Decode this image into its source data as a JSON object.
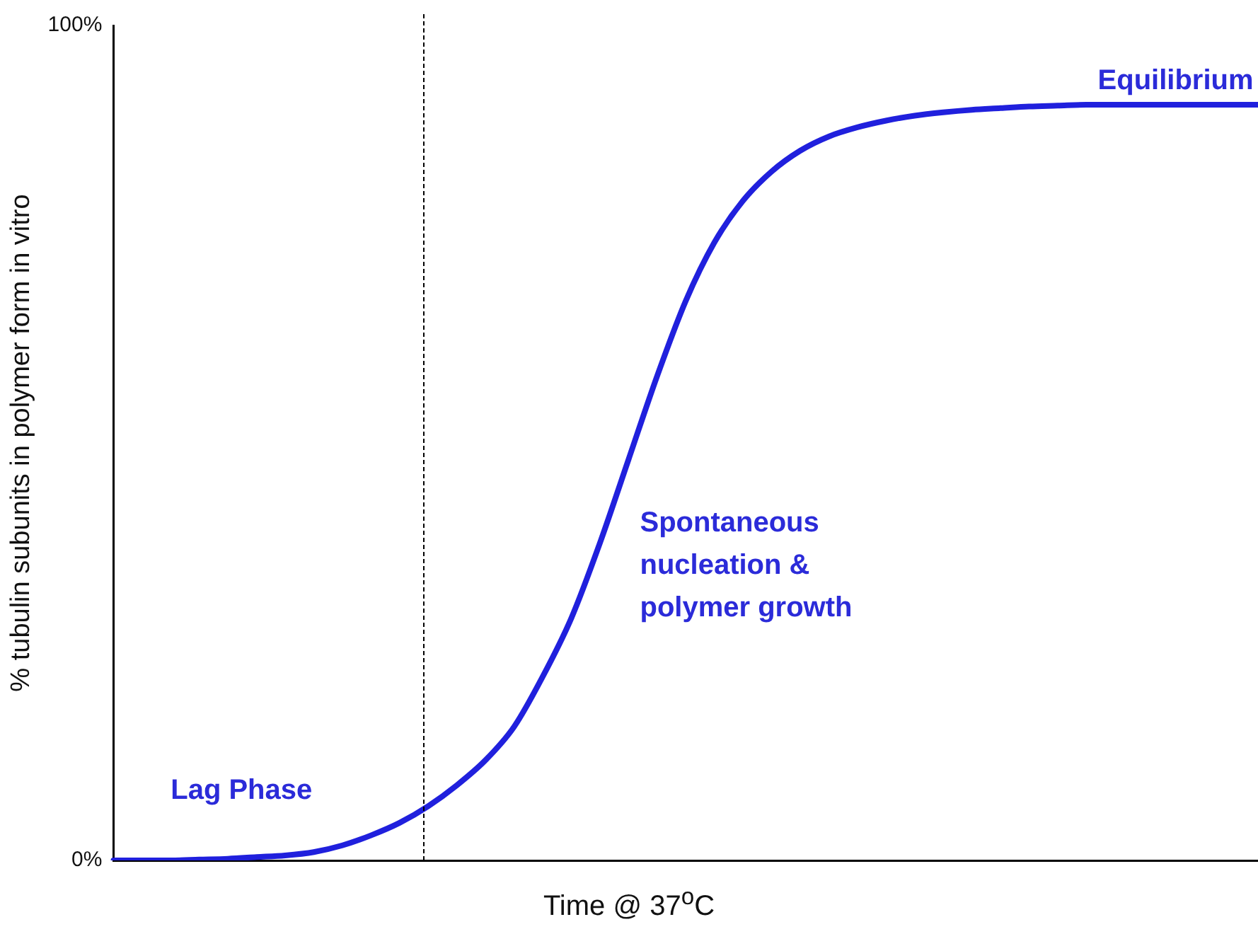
{
  "chart_data": {
    "type": "line",
    "ylabel": "% tubulin subunits in polymer form in vitro",
    "xlabel": "Time @ 37$^{o}$C",
    "categories": [
      null,
      null,
      null,
      null,
      null,
      null,
      null,
      null,
      null,
      null,
      null,
      null,
      null,
      null,
      null,
      null,
      null,
      null,
      null,
      null,
      null,
      null,
      null,
      null,
      null,
      null,
      null,
      null,
      null,
      null,
      null,
      null,
      null,
      null,
      null,
      null,
      null,
      null,
      null,
      null,
      null
    ],
    "series": [
      {
        "color": "#2020dd",
        "values": [
          0,
          0,
          0,
          0.1,
          0.2,
          0.4,
          0.6,
          1,
          1.8,
          3,
          4.5,
          6.5,
          9,
          12,
          16,
          22,
          29,
          38,
          48,
          58,
          67,
          74,
          79,
          82.5,
          85,
          86.7,
          87.8,
          88.6,
          89.2,
          89.6,
          89.9,
          90.1,
          90.3,
          90.4,
          90.5,
          90.5,
          90.5,
          90.5,
          90.5,
          90.5,
          90.5
        ]
      }
    ],
    "ylim": [
      0,
      100
    ],
    "yticks": [
      {
        "value": 0,
        "label": "0%"
      },
      {
        "value": 100,
        "label": "100%"
      }
    ],
    "annotations": [
      "Equilibrium",
      "Spontaneous nucleation & polymer growth",
      "Lag Phase"
    ],
    "tick_labels": "y",
    "grid": false,
    "legend": false,
    "marker": "none",
    "line_style": "solid"
  }
}
